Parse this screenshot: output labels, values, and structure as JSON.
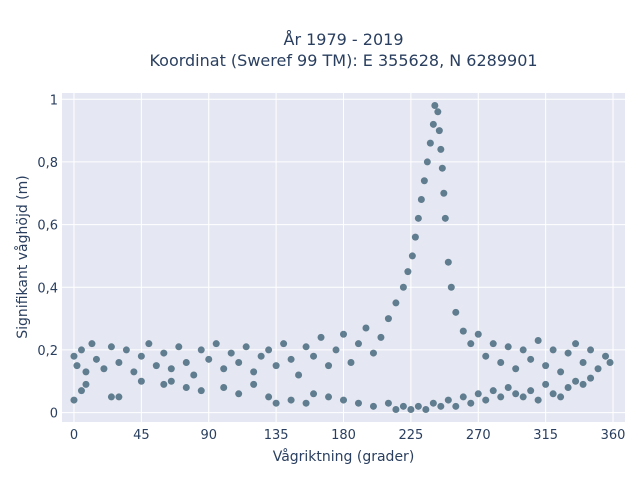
{
  "chart_data": {
    "type": "scatter",
    "title": "År 1979 - 2019",
    "subtitle": "Koordinat (Sweref 99 TM): E 355628, N 6289901",
    "xlabel": "Vågriktning (grader)",
    "ylabel": "Signifikant våghöjd (m)",
    "xlim": [
      -8,
      368
    ],
    "ylim": [
      -0.03,
      1.02
    ],
    "x_ticks": [
      0,
      45,
      90,
      135,
      180,
      225,
      270,
      315,
      360
    ],
    "x_tick_labels": [
      "0",
      "45",
      "90",
      "135",
      "180",
      "225",
      "270",
      "315",
      "360"
    ],
    "y_ticks": [
      0,
      0.2,
      0.4,
      0.6,
      0.8,
      1
    ],
    "y_tick_labels": [
      "0",
      "0,2",
      "0,4",
      "0,6",
      "0,8",
      "1"
    ],
    "grid": true,
    "legend": "none",
    "colors": {
      "marker": "#33586e",
      "plot_background": "#e5e8f2",
      "grid": "#ffffff",
      "text": "#2a3f5f"
    },
    "series": [
      {
        "points": [
          [
            0,
            0.18
          ],
          [
            2,
            0.15
          ],
          [
            5,
            0.2
          ],
          [
            8,
            0.13
          ],
          [
            12,
            0.22
          ],
          [
            15,
            0.17
          ],
          [
            20,
            0.14
          ],
          [
            25,
            0.21
          ],
          [
            30,
            0.16
          ],
          [
            35,
            0.2
          ],
          [
            40,
            0.13
          ],
          [
            45,
            0.18
          ],
          [
            50,
            0.22
          ],
          [
            55,
            0.15
          ],
          [
            60,
            0.19
          ],
          [
            65,
            0.14
          ],
          [
            70,
            0.21
          ],
          [
            75,
            0.16
          ],
          [
            80,
            0.12
          ],
          [
            85,
            0.2
          ],
          [
            90,
            0.17
          ],
          [
            95,
            0.22
          ],
          [
            100,
            0.14
          ],
          [
            105,
            0.19
          ],
          [
            110,
            0.16
          ],
          [
            115,
            0.21
          ],
          [
            120,
            0.13
          ],
          [
            125,
            0.18
          ],
          [
            130,
            0.2
          ],
          [
            135,
            0.15
          ],
          [
            140,
            0.22
          ],
          [
            145,
            0.17
          ],
          [
            150,
            0.12
          ],
          [
            155,
            0.21
          ],
          [
            160,
            0.18
          ],
          [
            165,
            0.24
          ],
          [
            170,
            0.15
          ],
          [
            175,
            0.2
          ],
          [
            180,
            0.25
          ],
          [
            185,
            0.16
          ],
          [
            190,
            0.22
          ],
          [
            195,
            0.27
          ],
          [
            200,
            0.19
          ],
          [
            205,
            0.24
          ],
          [
            210,
            0.3
          ],
          [
            215,
            0.35
          ],
          [
            220,
            0.4
          ],
          [
            223,
            0.45
          ],
          [
            226,
            0.5
          ],
          [
            228,
            0.56
          ],
          [
            230,
            0.62
          ],
          [
            232,
            0.68
          ],
          [
            234,
            0.74
          ],
          [
            236,
            0.8
          ],
          [
            238,
            0.86
          ],
          [
            240,
            0.92
          ],
          [
            241,
            0.98
          ],
          [
            243,
            0.96
          ],
          [
            244,
            0.9
          ],
          [
            245,
            0.84
          ],
          [
            246,
            0.78
          ],
          [
            247,
            0.7
          ],
          [
            248,
            0.62
          ],
          [
            250,
            0.48
          ],
          [
            252,
            0.4
          ],
          [
            255,
            0.32
          ],
          [
            260,
            0.26
          ],
          [
            265,
            0.22
          ],
          [
            270,
            0.25
          ],
          [
            275,
            0.18
          ],
          [
            280,
            0.22
          ],
          [
            285,
            0.16
          ],
          [
            290,
            0.21
          ],
          [
            295,
            0.14
          ],
          [
            300,
            0.2
          ],
          [
            305,
            0.17
          ],
          [
            310,
            0.23
          ],
          [
            315,
            0.15
          ],
          [
            320,
            0.2
          ],
          [
            325,
            0.13
          ],
          [
            330,
            0.19
          ],
          [
            335,
            0.22
          ],
          [
            340,
            0.16
          ],
          [
            345,
            0.2
          ],
          [
            350,
            0.14
          ],
          [
            355,
            0.18
          ],
          [
            358,
            0.16
          ],
          [
            0,
            0.04
          ],
          [
            5,
            0.07
          ],
          [
            8,
            0.09
          ],
          [
            25,
            0.05
          ],
          [
            30,
            0.05
          ],
          [
            45,
            0.1
          ],
          [
            60,
            0.09
          ],
          [
            65,
            0.1
          ],
          [
            75,
            0.08
          ],
          [
            85,
            0.07
          ],
          [
            100,
            0.08
          ],
          [
            110,
            0.06
          ],
          [
            120,
            0.09
          ],
          [
            130,
            0.05
          ],
          [
            135,
            0.03
          ],
          [
            145,
            0.04
          ],
          [
            155,
            0.03
          ],
          [
            160,
            0.06
          ],
          [
            170,
            0.05
          ],
          [
            180,
            0.04
          ],
          [
            190,
            0.03
          ],
          [
            200,
            0.02
          ],
          [
            210,
            0.03
          ],
          [
            215,
            0.01
          ],
          [
            220,
            0.02
          ],
          [
            225,
            0.01
          ],
          [
            230,
            0.02
          ],
          [
            235,
            0.01
          ],
          [
            240,
            0.03
          ],
          [
            245,
            0.02
          ],
          [
            250,
            0.04
          ],
          [
            255,
            0.02
          ],
          [
            260,
            0.05
          ],
          [
            265,
            0.03
          ],
          [
            270,
            0.06
          ],
          [
            275,
            0.04
          ],
          [
            280,
            0.07
          ],
          [
            285,
            0.05
          ],
          [
            290,
            0.08
          ],
          [
            295,
            0.06
          ],
          [
            300,
            0.05
          ],
          [
            305,
            0.07
          ],
          [
            310,
            0.04
          ],
          [
            315,
            0.09
          ],
          [
            320,
            0.06
          ],
          [
            325,
            0.05
          ],
          [
            330,
            0.08
          ],
          [
            335,
            0.1
          ],
          [
            340,
            0.09
          ],
          [
            345,
            0.11
          ]
        ]
      }
    ]
  }
}
